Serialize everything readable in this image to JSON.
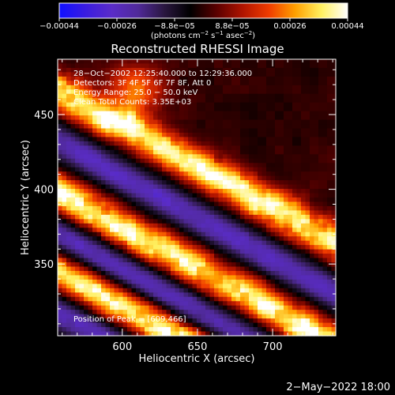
{
  "colorbar": {
    "ticks": [
      "−0.00044",
      "−0.00026",
      "−8.8e−05",
      "8.8e−05",
      "0.00026",
      "0.00044"
    ],
    "unit_main": "(photons cm",
    "unit_exp1": "−2",
    "unit_mid": " s",
    "unit_exp2": "−1",
    "unit_mid2": " asec",
    "unit_exp3": "−2",
    "unit_close": ")",
    "range": [
      -0.00044,
      0.00044
    ],
    "colors": [
      "#1010ff",
      "#3a1ce0",
      "#5a2cc8",
      "#502a9a",
      "#2a1740",
      "#000000",
      "#5a0000",
      "#b01400",
      "#f03c00",
      "#ffa000",
      "#fff060",
      "#ffffff"
    ]
  },
  "chart_data": {
    "type": "heatmap",
    "title": "Reconstructed RHESSI Image",
    "xlabel": "Heliocentric X (arcsec)",
    "ylabel": "Heliocentric Y (arcsec)",
    "xlim": [
      557,
      742
    ],
    "ylim": [
      302,
      487
    ],
    "xticks": [
      "600",
      "650",
      "700"
    ],
    "yticks": [
      "350",
      "400",
      "450"
    ],
    "info_lines": [
      "28−Oct−2002 12:25:40.000 to 12:29:36.000",
      "Detectors: 3F 4F 5F 6F 7F 8F, Att 0",
      "Energy Range: 25.0 − 50.0 keV",
      "Clean     Total Counts: 3.35E+03"
    ],
    "peak_label": "Position of Peak = [609,466]",
    "peak": [
      609,
      466
    ],
    "pattern": {
      "description_of_values": "positive emission bands alternate with negative bands running diagonally from upper-left to lower-right",
      "bands": [
        {
          "sign": "positive",
          "intercept": 466,
          "slope": -0.55
        },
        {
          "sign": "positive",
          "intercept": 398,
          "slope": -0.55
        },
        {
          "sign": "positive",
          "intercept": 345,
          "slope": -0.55
        },
        {
          "sign": "negative",
          "intercept": 432,
          "slope": -0.55
        },
        {
          "sign": "negative",
          "intercept": 370,
          "slope": -0.55
        },
        {
          "sign": "negative",
          "intercept": 318,
          "slope": -0.55
        }
      ]
    }
  },
  "footer": {
    "date": "2−May−2022 18:00"
  }
}
